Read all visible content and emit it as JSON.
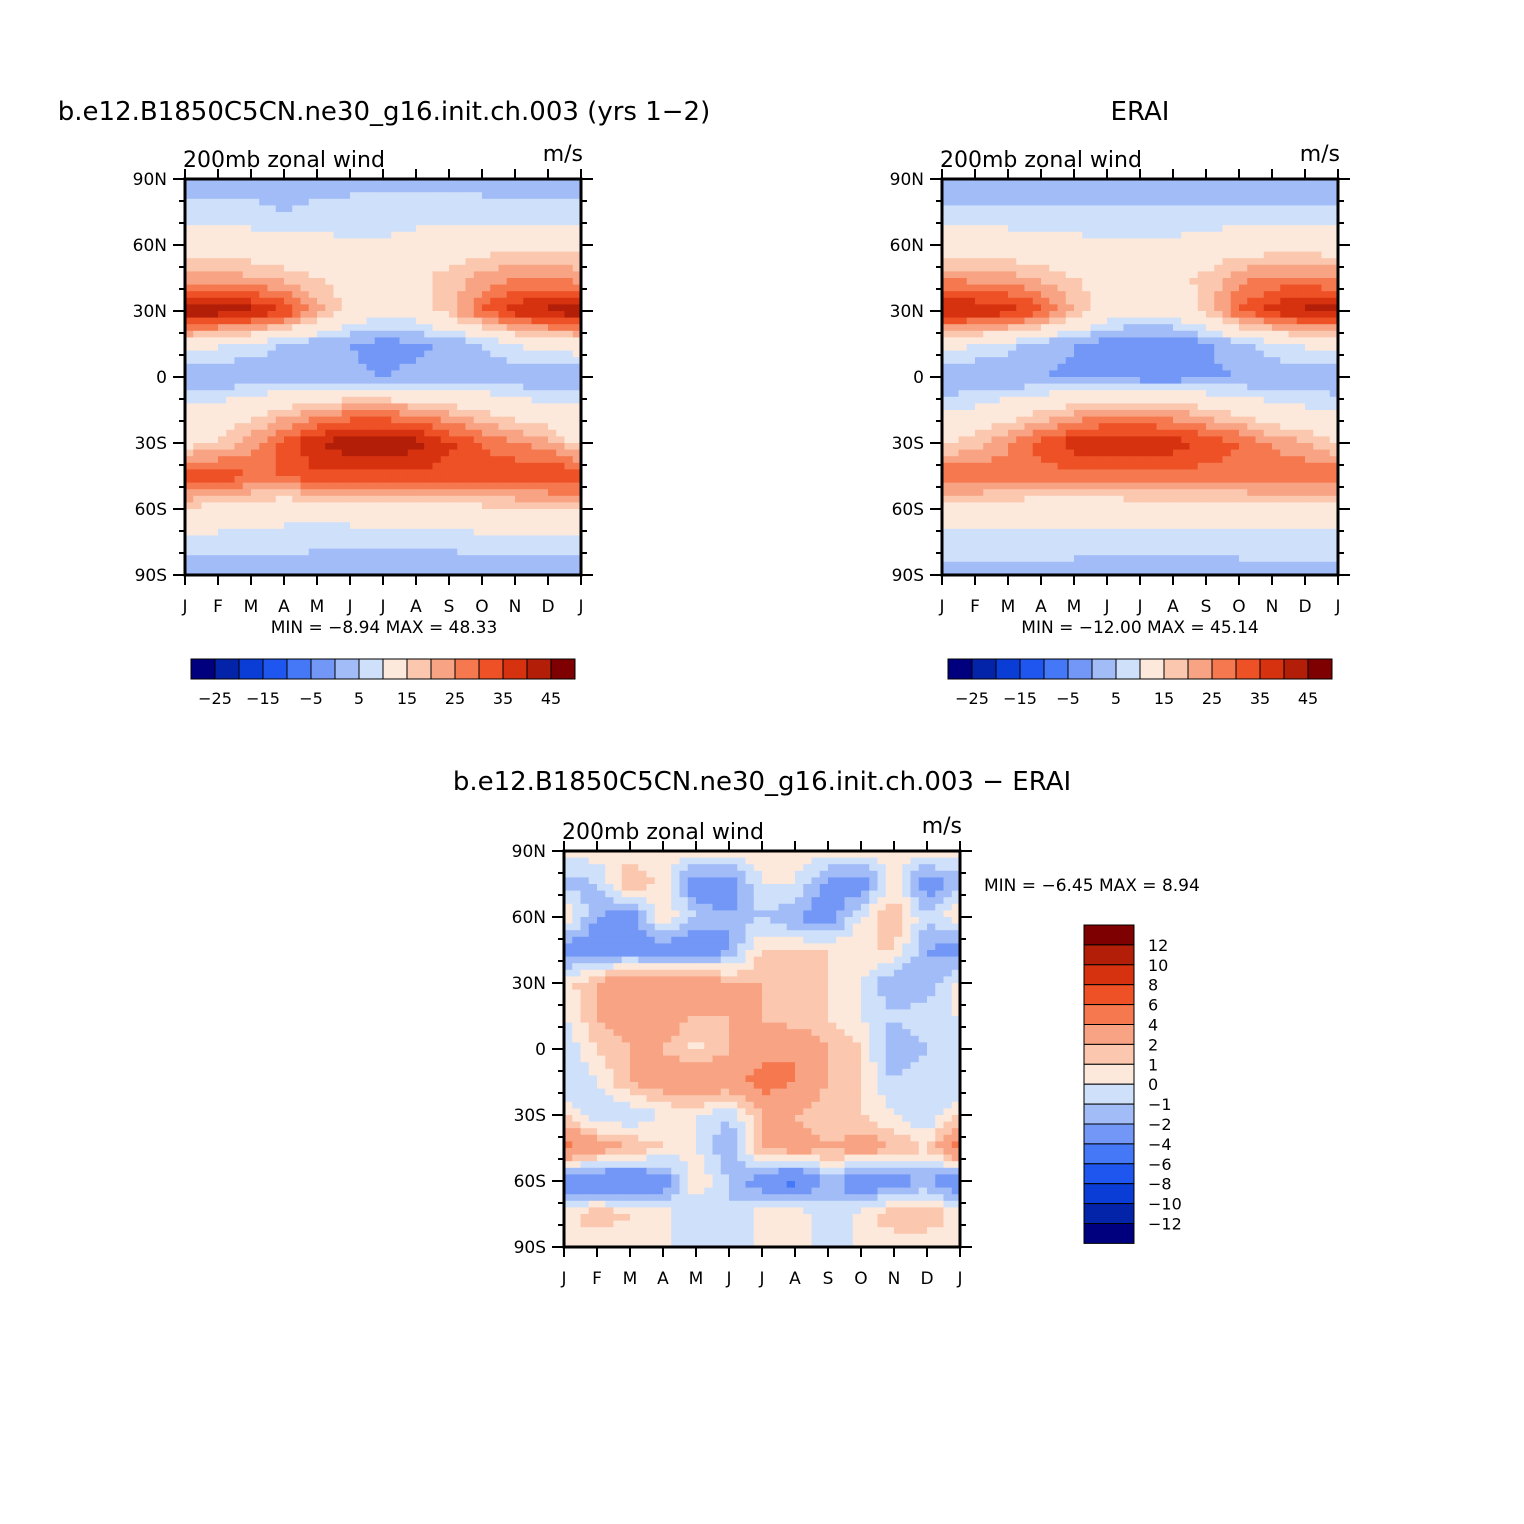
{
  "figure": {
    "colors": {
      "palette": [
        "#00007f",
        "#0323a9",
        "#0a3cd6",
        "#1f56ef",
        "#4478f7",
        "#7397f6",
        "#a2bcf8",
        "#cfe0fb",
        "#fde9dc",
        "#fbc8af",
        "#f8a383",
        "#f5784f",
        "#ee5126",
        "#d73210",
        "#b21e07",
        "#7f0000"
      ]
    },
    "panels": [
      {
        "id": "model",
        "title": "b.e12.B1850C5CN.ne30_g16.init.ch.003 (yrs 1−2)",
        "subtitle_left": "200mb zonal wind",
        "subtitle_right": "m/s",
        "stats": "MIN =   −8.94  MAX =    48.33"
      },
      {
        "id": "obs",
        "title": "ERAI",
        "subtitle_left": "200mb zonal wind",
        "subtitle_right": "m/s",
        "stats": "MIN =  −12.00  MAX =    45.14"
      },
      {
        "id": "diff",
        "title": "b.e12.B1850C5CN.ne30_g16.init.ch.003 − ERAI",
        "subtitle_left": "200mb zonal wind",
        "subtitle_right": "m/s",
        "stats": "MIN =   −6.45  MAX =     8.94"
      }
    ],
    "colorbar_main": {
      "labels": [
        "−25",
        "−15",
        "−5",
        "5",
        "15",
        "25",
        "35",
        "45"
      ]
    },
    "colorbar_diff": {
      "labels": [
        "12",
        "10",
        "8",
        "6",
        "4",
        "2",
        "1",
        "0",
        "−1",
        "−2",
        "−4",
        "−6",
        "−8",
        "−10",
        "−12"
      ]
    }
  },
  "chart_data": [
    {
      "type": "heatmap",
      "title": "b.e12.B1850C5CN.ne30_g16.init.ch.003 (yrs 1−2)",
      "subtitle": "200mb zonal wind",
      "units": "m/s",
      "x_ticks": [
        "J",
        "F",
        "M",
        "A",
        "M",
        "J",
        "J",
        "A",
        "S",
        "O",
        "N",
        "D",
        "J"
      ],
      "y_ticks": [
        "90N",
        "60N",
        "30N",
        "0",
        "30S",
        "60S",
        "90S"
      ],
      "xlim": [
        0,
        12
      ],
      "ylim": [
        -90,
        90
      ],
      "levels": [
        -30,
        -25,
        -20,
        -15,
        -10,
        -5,
        0,
        5,
        10,
        15,
        20,
        25,
        30,
        35,
        40,
        45
      ],
      "min": -8.94,
      "max": 48.33,
      "latitudes": [
        90,
        75,
        60,
        45,
        30,
        15,
        0,
        -15,
        -30,
        -45,
        -60,
        -75,
        -90
      ],
      "months": [
        "J",
        "F",
        "M",
        "A",
        "M",
        "J",
        "J",
        "A",
        "S",
        "O",
        "N",
        "D",
        "J"
      ],
      "values": [
        [
          -2,
          -2,
          -2,
          -2,
          -2,
          -2,
          -2,
          -2,
          -2,
          -2,
          -2,
          -2,
          -2
        ],
        [
          2,
          1,
          1,
          0,
          1,
          2,
          2,
          3,
          3,
          2,
          1,
          1,
          2
        ],
        [
          12,
          11,
          9,
          8,
          7,
          6,
          6,
          7,
          9,
          11,
          13,
          14,
          12
        ],
        [
          22,
          22,
          21,
          18,
          15,
          13,
          13,
          14,
          17,
          22,
          25,
          25,
          22
        ],
        [
          45,
          44,
          42,
          35,
          22,
          12,
          8,
          10,
          18,
          30,
          38,
          42,
          45
        ],
        [
          10,
          6,
          3,
          0,
          -3,
          -5,
          -7,
          -6,
          -4,
          0,
          5,
          8,
          10
        ],
        [
          -6,
          -5,
          -4,
          -4,
          -4,
          -4,
          -5,
          -4,
          -3,
          -3,
          -4,
          -5,
          -6
        ],
        [
          6,
          8,
          12,
          16,
          20,
          24,
          24,
          22,
          18,
          14,
          10,
          8,
          6
        ],
        [
          12,
          16,
          22,
          32,
          40,
          44,
          46,
          42,
          36,
          30,
          26,
          22,
          12
        ],
        [
          36,
          34,
          30,
          30,
          34,
          34,
          33,
          34,
          33,
          32,
          34,
          36,
          36
        ],
        [
          14,
          12,
          10,
          8,
          8,
          9,
          10,
          11,
          12,
          13,
          14,
          14,
          14
        ],
        [
          2,
          2,
          2,
          2,
          1,
          1,
          1,
          1,
          1,
          2,
          2,
          2,
          2
        ],
        [
          -3,
          -3,
          -3,
          -3,
          -3,
          -3,
          -3,
          -3,
          -3,
          -3,
          -3,
          -3,
          -3
        ]
      ]
    },
    {
      "type": "heatmap",
      "title": "ERAI",
      "subtitle": "200mb zonal wind",
      "units": "m/s",
      "x_ticks": [
        "J",
        "F",
        "M",
        "A",
        "M",
        "J",
        "J",
        "A",
        "S",
        "O",
        "N",
        "D",
        "J"
      ],
      "y_ticks": [
        "90N",
        "60N",
        "30N",
        "0",
        "30S",
        "60S",
        "90S"
      ],
      "xlim": [
        0,
        12
      ],
      "ylim": [
        -90,
        90
      ],
      "levels": [
        -30,
        -25,
        -20,
        -15,
        -10,
        -5,
        0,
        5,
        10,
        15,
        20,
        25,
        30,
        35,
        40,
        45
      ],
      "min": -12.0,
      "max": 45.14,
      "latitudes": [
        90,
        75,
        60,
        45,
        30,
        15,
        0,
        -15,
        -30,
        -45,
        -60,
        -75,
        -90
      ],
      "months": [
        "J",
        "F",
        "M",
        "A",
        "M",
        "J",
        "J",
        "A",
        "S",
        "O",
        "N",
        "D",
        "J"
      ],
      "values": [
        [
          -3,
          -3,
          -3,
          -3,
          -3,
          -3,
          -3,
          -3,
          -3,
          -3,
          -3,
          -3,
          -3
        ],
        [
          1,
          1,
          1,
          1,
          1,
          1,
          1,
          1,
          1,
          1,
          1,
          1,
          1
        ],
        [
          10,
          10,
          9,
          8,
          7,
          6,
          6,
          6,
          8,
          10,
          11,
          11,
          10
        ],
        [
          24,
          23,
          22,
          19,
          15,
          12,
          12,
          13,
          17,
          23,
          26,
          26,
          24
        ],
        [
          42,
          40,
          38,
          32,
          20,
          10,
          7,
          9,
          16,
          30,
          38,
          42,
          42
        ],
        [
          8,
          5,
          2,
          -2,
          -5,
          -8,
          -10,
          -9,
          -6,
          -1,
          3,
          6,
          8
        ],
        [
          -5,
          -5,
          -5,
          -5,
          -6,
          -7,
          -8,
          -8,
          -6,
          -5,
          -4,
          -4,
          -5
        ],
        [
          4,
          6,
          10,
          14,
          18,
          22,
          22,
          20,
          16,
          12,
          8,
          6,
          4
        ],
        [
          14,
          18,
          24,
          32,
          38,
          40,
          40,
          38,
          34,
          30,
          24,
          20,
          14
        ],
        [
          30,
          30,
          28,
          28,
          28,
          28,
          28,
          28,
          28,
          28,
          30,
          30,
          30
        ],
        [
          12,
          11,
          10,
          9,
          9,
          9,
          10,
          10,
          10,
          11,
          12,
          12,
          12
        ],
        [
          2,
          2,
          2,
          2,
          2,
          1,
          1,
          1,
          1,
          2,
          2,
          2,
          2
        ],
        [
          -2,
          -2,
          -2,
          -2,
          -2,
          -2,
          -2,
          -2,
          -2,
          -2,
          -2,
          -2,
          -2
        ]
      ]
    },
    {
      "type": "heatmap",
      "title": "b.e12.B1850C5CN.ne30_g16.init.ch.003 − ERAI",
      "subtitle": "200mb zonal wind",
      "units": "m/s",
      "x_ticks": [
        "J",
        "F",
        "M",
        "A",
        "M",
        "J",
        "J",
        "A",
        "S",
        "O",
        "N",
        "D",
        "J"
      ],
      "y_ticks": [
        "90N",
        "60N",
        "30N",
        "0",
        "30S",
        "60S",
        "90S"
      ],
      "xlim": [
        0,
        12
      ],
      "ylim": [
        -90,
        90
      ],
      "levels": [
        -12,
        -10,
        -8,
        -6,
        -4,
        -2,
        -1,
        0,
        1,
        2,
        4,
        6,
        8,
        10,
        12
      ],
      "min": -6.45,
      "max": 8.94,
      "latitudes": [
        90,
        75,
        60,
        45,
        30,
        15,
        0,
        -15,
        -30,
        -45,
        -60,
        -75,
        -90
      ],
      "months": [
        "J",
        "F",
        "M",
        "A",
        "M",
        "J",
        "J",
        "A",
        "S",
        "O",
        "N",
        "D",
        "J"
      ],
      "values": [
        [
          0.5,
          0.5,
          0.5,
          0.5,
          0.5,
          0.5,
          0.5,
          0.5,
          0.5,
          0.5,
          0.5,
          0.5,
          0.5
        ],
        [
          -1.5,
          -1,
          2,
          0.5,
          -3,
          -3,
          0,
          0,
          -2.5,
          -3,
          0.5,
          -3,
          -1.5
        ],
        [
          1,
          -2,
          -3,
          1,
          -1,
          -2,
          -1,
          -2,
          -3,
          0,
          2,
          -1,
          1
        ],
        [
          -3,
          -3,
          -3,
          -3,
          -4,
          -2,
          1,
          1,
          1,
          1,
          1,
          -2,
          -3
        ],
        [
          0.5,
          2,
          4,
          3,
          4,
          2,
          2,
          2,
          1,
          0,
          -2,
          -2,
          0.5
        ],
        [
          0,
          2,
          3,
          3,
          2,
          2,
          2,
          1,
          1,
          0,
          -1,
          0,
          0
        ],
        [
          -1,
          1,
          2,
          2,
          0.5,
          2,
          3,
          4,
          2,
          1,
          -2,
          -1,
          -1
        ],
        [
          -1,
          0,
          2,
          3,
          4,
          3,
          5,
          4,
          2,
          1,
          -1,
          0,
          -1
        ],
        [
          1,
          -1,
          -1,
          0,
          0,
          -1,
          2,
          2,
          1,
          1,
          0,
          -1,
          1
        ],
        [
          5,
          3,
          2,
          1,
          0,
          -2,
          2,
          3,
          2,
          3,
          2,
          1,
          5
        ],
        [
          -4,
          -4,
          -4,
          -3,
          1,
          -1,
          -3,
          -5,
          -1,
          -4,
          -3,
          -2,
          -4
        ],
        [
          0.5,
          2,
          1,
          0.5,
          -1,
          -1,
          0.5,
          1,
          -1,
          0.5,
          2,
          2,
          0.5
        ],
        [
          0,
          0,
          0,
          0,
          0,
          0,
          0,
          0,
          0,
          0,
          0,
          0,
          0
        ]
      ]
    }
  ]
}
